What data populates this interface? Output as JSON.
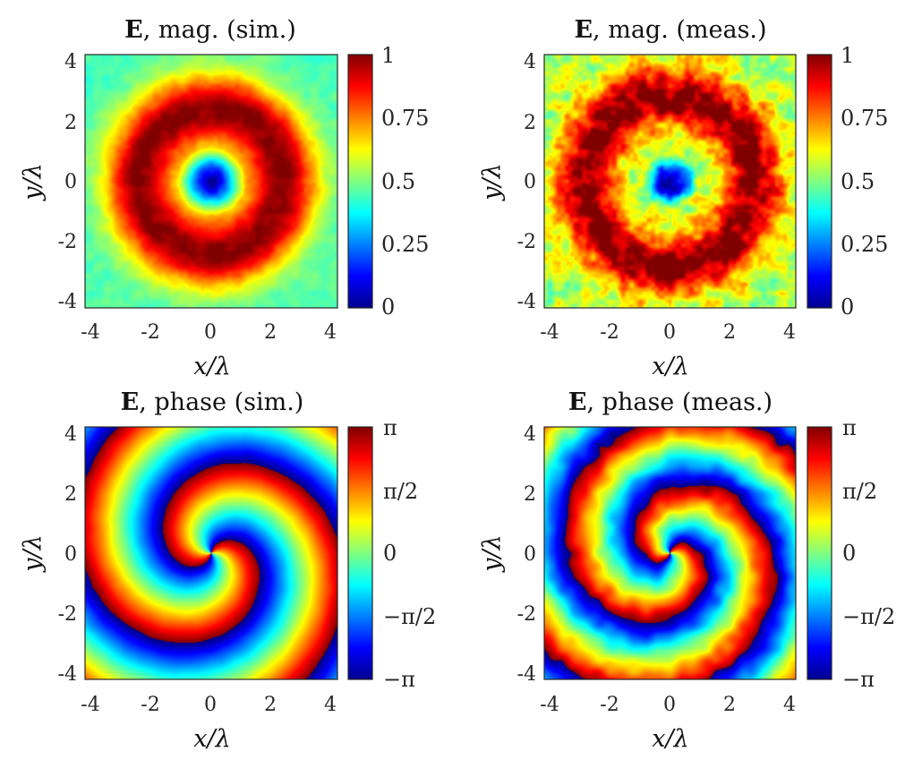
{
  "chart_data": [
    {
      "type": "heatmap",
      "title_bold": "E",
      "title_rest": ", mag. (sim.)",
      "xlabel": "x/λ",
      "ylabel": "y/λ",
      "xlim": [
        -4.2,
        4.2
      ],
      "ylim": [
        -4.2,
        4.2
      ],
      "x_ticks": [
        "-4",
        "-2",
        "0",
        "2",
        "4"
      ],
      "y_ticks": [
        "4",
        "2",
        "0",
        "-2",
        "-4"
      ],
      "colorbar": {
        "min": 0,
        "max": 1,
        "colormap": "jet",
        "tick_labels": [
          "1",
          "0.75",
          "0.5",
          "0.25",
          "0"
        ]
      },
      "field": {
        "kind": "magnitude",
        "ring_radius": 2.4,
        "ring_width": 1.15,
        "center_value": 0.05,
        "edge_value": 0.45,
        "noise": 0.03
      }
    },
    {
      "type": "heatmap",
      "title_bold": "E",
      "title_rest": ", mag. (meas.)",
      "xlabel": "x/λ",
      "ylabel": "y/λ",
      "xlim": [
        -4.2,
        4.2
      ],
      "ylim": [
        -4.2,
        4.2
      ],
      "x_ticks": [
        "-4",
        "-2",
        "0",
        "2",
        "4"
      ],
      "y_ticks": [
        "4",
        "2",
        "0",
        "-2",
        "-4"
      ],
      "colorbar": {
        "min": 0,
        "max": 1,
        "colormap": "jet",
        "tick_labels": [
          "1",
          "0.75",
          "0.5",
          "0.25",
          "0"
        ]
      },
      "field": {
        "kind": "magnitude",
        "ring_radius": 2.8,
        "ring_width": 1.0,
        "center_value": 0.08,
        "edge_value": 0.55,
        "noise": 0.1
      }
    },
    {
      "type": "heatmap",
      "title_bold": "E",
      "title_rest": ", phase (sim.)",
      "xlabel": "x/λ",
      "ylabel": "y/λ",
      "xlim": [
        -4.2,
        4.2
      ],
      "ylim": [
        -4.2,
        4.2
      ],
      "x_ticks": [
        "-4",
        "-2",
        "0",
        "2",
        "4"
      ],
      "y_ticks": [
        "4",
        "2",
        "0",
        "-2",
        "-4"
      ],
      "colorbar": {
        "min": -3.14159,
        "max": 3.14159,
        "colormap": "jet",
        "tick_labels": [
          "π",
          "π/2",
          "0",
          "−π/2",
          "−π"
        ]
      },
      "field": {
        "kind": "phase",
        "charge": 2,
        "radial_twist": 1.05,
        "offset": 0.3,
        "noise": 0.02
      }
    },
    {
      "type": "heatmap",
      "title_bold": "E",
      "title_rest": ", phase (meas.)",
      "xlabel": "x/λ",
      "ylabel": "y/λ",
      "xlim": [
        -4.2,
        4.2
      ],
      "ylim": [
        -4.2,
        4.2
      ],
      "x_ticks": [
        "-4",
        "-2",
        "0",
        "2",
        "4"
      ],
      "y_ticks": [
        "4",
        "2",
        "0",
        "-2",
        "-4"
      ],
      "colorbar": {
        "min": -3.14159,
        "max": 3.14159,
        "colormap": "jet",
        "tick_labels": [
          "π",
          "π/2",
          "0",
          "−π/2",
          "−π"
        ]
      },
      "field": {
        "kind": "phase",
        "charge": 2,
        "radial_twist": 1.3,
        "offset": 0.6,
        "noise": 0.12
      }
    }
  ]
}
